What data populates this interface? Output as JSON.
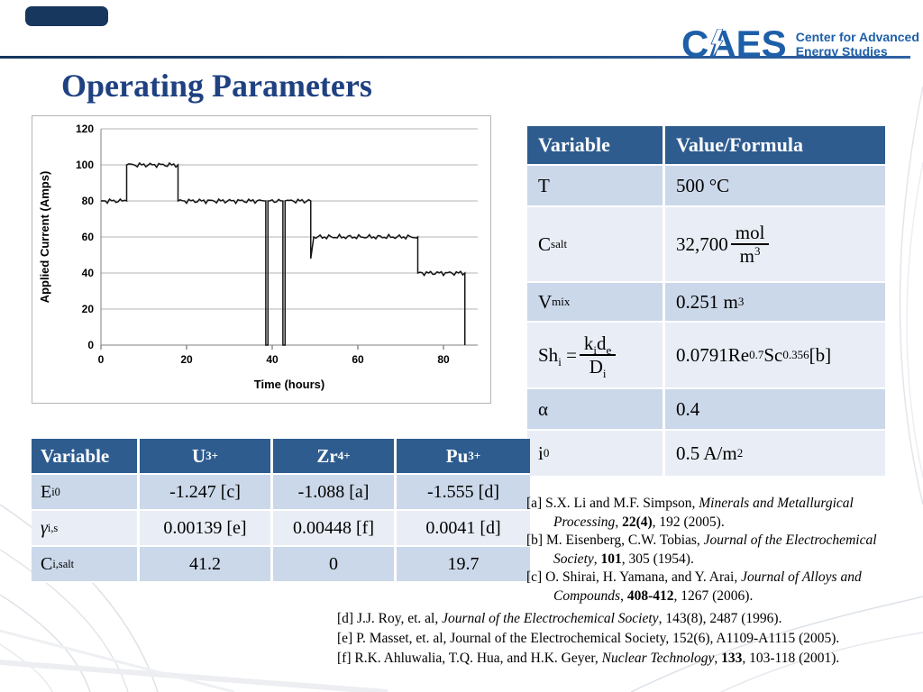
{
  "slide": {
    "title": "Operating Parameters"
  },
  "logo": {
    "acronym": "CAES",
    "line1": "Center for Advanced",
    "line2": "Energy Studies"
  },
  "chart_data": {
    "type": "line",
    "title": "",
    "xlabel": "Time (hours)",
    "ylabel": "Applied Current (Amps)",
    "xlim": [
      0,
      88
    ],
    "ylim": [
      0,
      120
    ],
    "xticks": [
      0,
      20,
      40,
      60,
      80
    ],
    "yticks": [
      0,
      20,
      40,
      60,
      80,
      100,
      120
    ],
    "grid": "horizontal",
    "legend": "none",
    "series": [
      {
        "name": "Applied Current",
        "color": "#161616",
        "points": [
          [
            0,
            80
          ],
          [
            6,
            80
          ],
          [
            6,
            100
          ],
          [
            18,
            100
          ],
          [
            18,
            80
          ],
          [
            38.5,
            80
          ],
          [
            38.5,
            0
          ],
          [
            39,
            0
          ],
          [
            39,
            80
          ],
          [
            42.5,
            80
          ],
          [
            42.5,
            0
          ],
          [
            43,
            0
          ],
          [
            43,
            80
          ],
          [
            49,
            80
          ],
          [
            49,
            48
          ],
          [
            49.7,
            60
          ],
          [
            74,
            60
          ],
          [
            74,
            40
          ],
          [
            85,
            40
          ],
          [
            85,
            0
          ]
        ]
      }
    ]
  },
  "params_table": {
    "header": {
      "variable": "Variable",
      "value": "Value/Formula"
    },
    "rows": {
      "t": {
        "variable": [
          {
            "t": "T"
          }
        ],
        "value": [
          {
            "t": "500 °C"
          }
        ]
      },
      "csalt": {
        "variable": [
          {
            "t": "C"
          },
          {
            "t": "salt",
            "st": "sub"
          }
        ],
        "value_prefix": [
          {
            "t": "32,700 "
          }
        ],
        "frac_num": [
          {
            "t": "mol"
          }
        ],
        "frac_den": [
          {
            "t": "m"
          },
          {
            "t": "3",
            "st": "sup"
          }
        ]
      },
      "vmix": {
        "variable": [
          {
            "t": "V"
          },
          {
            "t": "mix",
            "st": "sub"
          }
        ],
        "value": [
          {
            "t": "0.251 m"
          },
          {
            "t": "3",
            "st": "sup"
          }
        ]
      },
      "sh": {
        "variable_lhs": [
          {
            "t": "Sh"
          },
          {
            "t": "i",
            "st": "sub"
          },
          {
            "t": " = "
          }
        ],
        "frac_num": [
          {
            "t": "k"
          },
          {
            "t": "i",
            "st": "sub"
          },
          {
            "t": "d"
          },
          {
            "t": "e",
            "st": "sub"
          }
        ],
        "frac_den": [
          {
            "t": "D"
          },
          {
            "t": "i",
            "st": "sub"
          }
        ],
        "value": [
          {
            "t": "0.0791Re"
          },
          {
            "t": "0.7",
            "st": "sup"
          },
          {
            "t": "Sc"
          },
          {
            "t": "0.356",
            "st": "sup"
          },
          {
            "t": " [b]"
          }
        ]
      },
      "alpha": {
        "variable": [
          {
            "t": "α"
          }
        ],
        "value": [
          {
            "t": "0.4"
          }
        ]
      },
      "i0": {
        "variable": [
          {
            "t": "i"
          },
          {
            "t": "0",
            "st": "sub"
          }
        ],
        "value": [
          {
            "t": "0.5 A/m"
          },
          {
            "t": "2",
            "st": "sup"
          }
        ]
      }
    }
  },
  "species_table": {
    "headers": {
      "variable": [
        {
          "t": "Variable"
        }
      ],
      "u": [
        {
          "t": "U"
        },
        {
          "t": "3+",
          "st": "sup"
        }
      ],
      "zr": [
        {
          "t": "Zr"
        },
        {
          "t": "4+",
          "st": "sup"
        }
      ],
      "pu": [
        {
          "t": "Pu"
        },
        {
          "t": "3+",
          "st": "sup"
        }
      ]
    },
    "rows": [
      {
        "label": [
          {
            "t": "E"
          },
          {
            "t": "i",
            "st": "sub"
          },
          {
            "t": "0",
            "st": "sup"
          }
        ],
        "u": [
          {
            "t": "-1.247 [c]"
          }
        ],
        "zr": [
          {
            "t": "-1.088 [a]"
          }
        ],
        "pu": [
          {
            "t": "-1.555 [d]"
          }
        ]
      },
      {
        "label": [
          {
            "t": "γ",
            "st": "i"
          },
          {
            "t": "i,s",
            "st": "sub"
          }
        ],
        "u": [
          {
            "t": "0.00139 [e]"
          }
        ],
        "zr": [
          {
            "t": "0.00448 [f]"
          }
        ],
        "pu": [
          {
            "t": "0.0041 [d]"
          }
        ]
      },
      {
        "label": [
          {
            "t": "C"
          },
          {
            "t": "i,salt",
            "st": "sub"
          }
        ],
        "u": [
          {
            "t": "41.2"
          }
        ],
        "zr": [
          {
            "t": "0"
          }
        ],
        "pu": [
          {
            "t": "19.7"
          }
        ]
      }
    ]
  },
  "references": {
    "right": [
      [
        {
          "t": "[a] S.X. Li and M.F. Simpson, "
        },
        {
          "t": "Minerals and Metallurgical Processing",
          "st": "i"
        },
        {
          "t": ", "
        },
        {
          "t": "22(4)",
          "st": "b"
        },
        {
          "t": ", 192 (2005)."
        }
      ],
      [
        {
          "t": "[b] M. Eisenberg, C.W. Tobias, "
        },
        {
          "t": "Journal of the Electrochemical Society",
          "st": "i"
        },
        {
          "t": ", "
        },
        {
          "t": "101",
          "st": "b"
        },
        {
          "t": ", 305 (1954)."
        }
      ],
      [
        {
          "t": "[c] O. Shirai, H. Yamana, and Y. Arai, "
        },
        {
          "t": "Journal of Alloys and Compounds",
          "st": "i"
        },
        {
          "t": ", "
        },
        {
          "t": "408-412",
          "st": "b"
        },
        {
          "t": ", 1267 (2006)."
        }
      ]
    ],
    "bottom": [
      [
        {
          "t": "[d] J.J. Roy, et. al, "
        },
        {
          "t": "Journal of the Electrochemical Society",
          "st": "i"
        },
        {
          "t": ", 143(8), 2487 (1996)."
        }
      ],
      [
        {
          "t": "[e] P. Masset, et. al, Journal of the Electrochemical Society, 152(6), A1109-A1115 (2005)."
        }
      ],
      [
        {
          "t": "[f] R.K. Ahluwalia, T.Q. Hua, and H.K. Geyer, "
        },
        {
          "t": "Nuclear Technology",
          "st": "i"
        },
        {
          "t": ", "
        },
        {
          "t": "133",
          "st": "b"
        },
        {
          "t": ", 103-118 (2001)."
        }
      ]
    ]
  }
}
